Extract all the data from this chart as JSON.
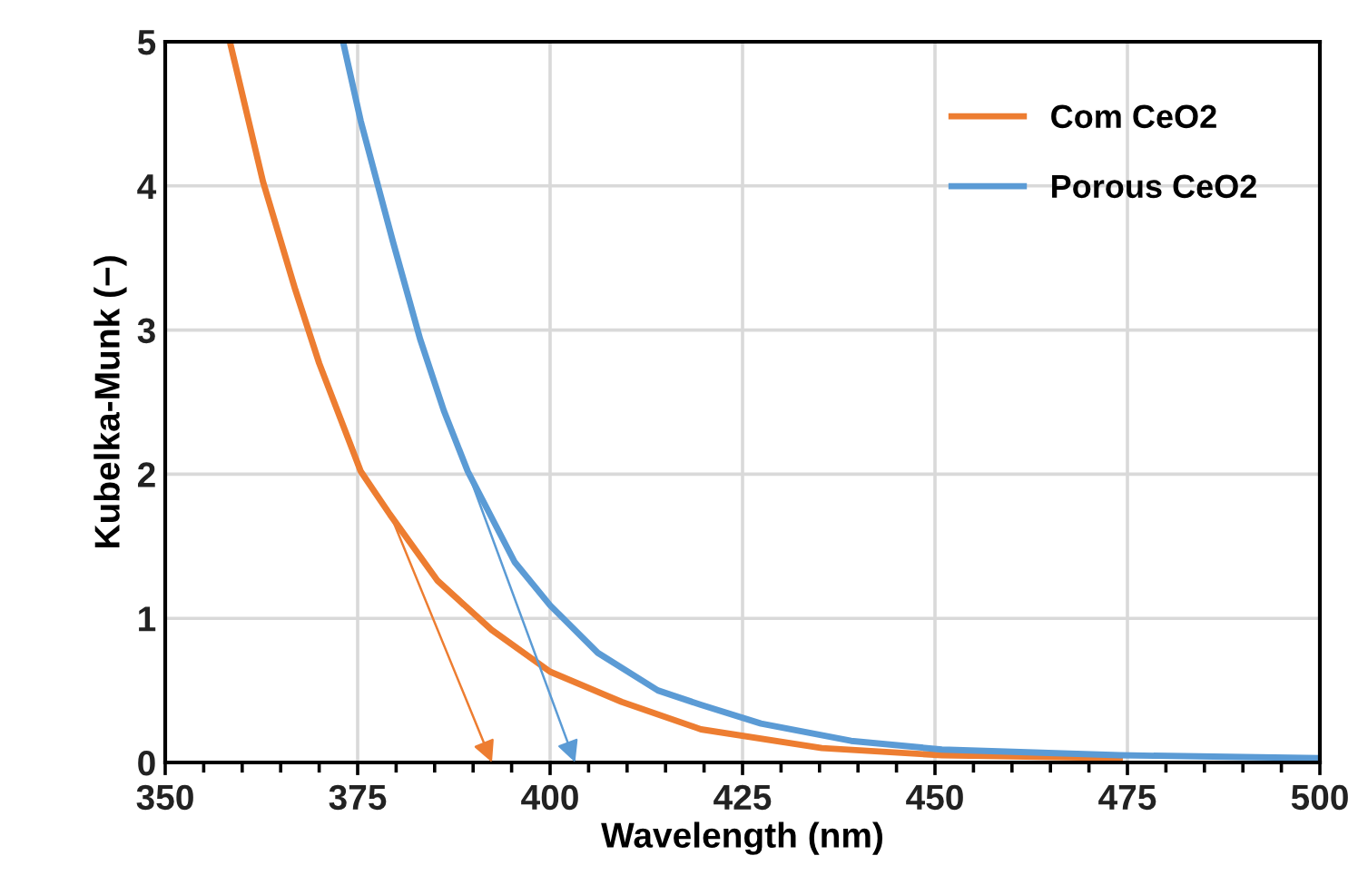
{
  "chart_data": {
    "type": "line",
    "xlabel": "Wavelength (nm)",
    "ylabel": "Kubelka-Munk (−)",
    "xlim": [
      350,
      500
    ],
    "xticks": [
      350,
      375,
      400,
      425,
      450,
      475,
      500
    ],
    "ylim": [
      0,
      5
    ],
    "yticks": [
      0,
      1,
      2,
      3,
      4,
      5
    ],
    "grid": true,
    "legend": "top right",
    "marker": "none",
    "line_style": "solid",
    "series": [
      {
        "name": "Com CeO2",
        "color": "#ed7d31",
        "x": [
          358.4,
          362.7,
          366.9,
          370.0,
          375.4,
          379.2,
          385.4,
          392.4,
          400,
          409.3,
          419.6,
          435.3,
          450.9,
          474
        ],
        "values": [
          5,
          4.03,
          3.28,
          2.77,
          2.02,
          1.72,
          1.26,
          0.92,
          0.63,
          0.42,
          0.23,
          0.1,
          0.05,
          0.03
        ]
      },
      {
        "name": "Porous CeO2",
        "color": "#5b9bd5",
        "x": [
          373.1,
          375.4,
          379.6,
          383.1,
          386.2,
          389.3,
          395.4,
          400,
          406.2,
          414,
          419.6,
          427.4,
          439.1,
          450.9,
          474,
          500
        ],
        "values": [
          5,
          4.45,
          3.61,
          2.94,
          2.44,
          2.02,
          1.39,
          1.09,
          0.76,
          0.5,
          0.4,
          0.27,
          0.15,
          0.09,
          0.05,
          0.03
        ]
      }
    ]
  }
}
